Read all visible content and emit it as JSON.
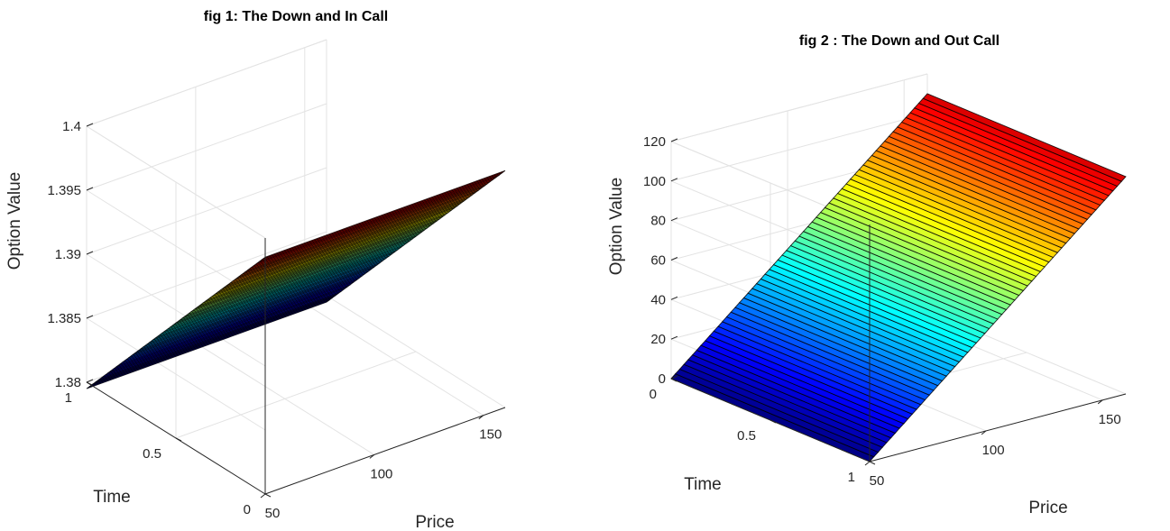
{
  "chart_data": [
    {
      "type": "surface",
      "title": "fig 1: The Down and In Call",
      "xlabel": "Price",
      "ylabel": "Time",
      "zlabel": "Option Value",
      "xlim": [
        50,
        160
      ],
      "ylim": [
        0,
        1
      ],
      "zlim": [
        1.38,
        1.4
      ],
      "xticks": [
        "50",
        "100",
        "150"
      ],
      "yticks": [
        "0",
        "0.5",
        "1"
      ],
      "zticks": [
        "1.38",
        "1.385",
        "1.39",
        "1.395",
        "1.4"
      ],
      "colormap": "jet",
      "surface": {
        "price_range": [
          50,
          160
        ],
        "time_range": [
          0,
          1
        ],
        "value_at_time_0": 1.3985,
        "value_at_time_1": 1.3795,
        "varies_with": "time"
      }
    },
    {
      "type": "surface",
      "title": "fig 2 : The Down and Out Call",
      "xlabel": "Price",
      "ylabel": "Time",
      "zlabel": "Option Value",
      "xlim": [
        50,
        160
      ],
      "ylim": [
        0,
        1
      ],
      "zlim": [
        0,
        120
      ],
      "xticks": [
        "50",
        "100",
        "150"
      ],
      "yticks": [
        "0",
        "0.5",
        "1"
      ],
      "zticks": [
        "0",
        "20",
        "40",
        "60",
        "80",
        "100",
        "120"
      ],
      "colormap": "jet",
      "surface": {
        "price_range": [
          50,
          160
        ],
        "time_range": [
          0,
          1
        ],
        "value_at_price_50": 0,
        "value_at_price_160": 110,
        "varies_with": "price"
      }
    }
  ]
}
